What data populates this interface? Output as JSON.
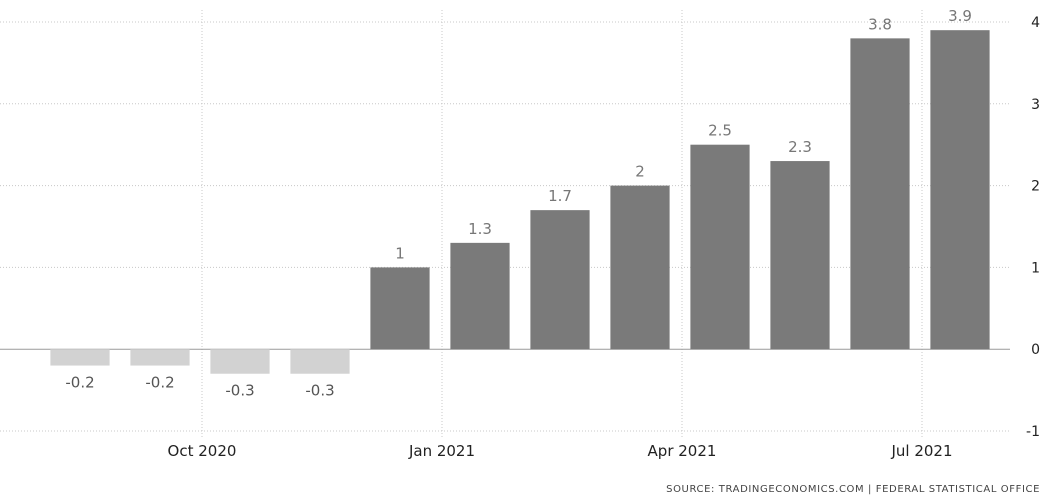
{
  "chart_data": {
    "type": "bar",
    "categories": [
      "2020-08",
      "2020-09",
      "2020-10",
      "2020-11",
      "2020-12",
      "2021-01",
      "2021-02",
      "2021-03",
      "2021-04",
      "2021-05",
      "2021-06",
      "2021-07"
    ],
    "values": [
      -0.2,
      -0.2,
      -0.3,
      -0.3,
      1,
      1.3,
      1.7,
      2,
      2.5,
      2.3,
      3.8,
      3.9
    ],
    "data_labels": [
      "-0.2",
      "-0.2",
      "-0.3",
      "-0.3",
      "1",
      "1.3",
      "1.7",
      "2",
      "2.5",
      "2.3",
      "3.8",
      "3.9"
    ],
    "ylim": [
      -1,
      4
    ],
    "yticks": [
      -1,
      0,
      1,
      2,
      3,
      4
    ],
    "ytick_labels": [
      "-1",
      "0",
      "1",
      "2",
      "3",
      "4"
    ],
    "xtick_labels": [
      "Oct 2020",
      "Jan 2021",
      "Apr 2021",
      "Jul 2021"
    ],
    "xtick_months": [
      "2020-10",
      "2021-01",
      "2021-04",
      "2021-07"
    ],
    "yaxis_position": "right",
    "grid": true,
    "colors": {
      "positive": "#7a7a7a",
      "negative": "#d2d2d2",
      "positive_label": "#777777",
      "negative_label": "#555555"
    }
  },
  "source_text": "SOURCE: TRADINGECONOMICS.COM | FEDERAL STATISTICAL OFFICE"
}
